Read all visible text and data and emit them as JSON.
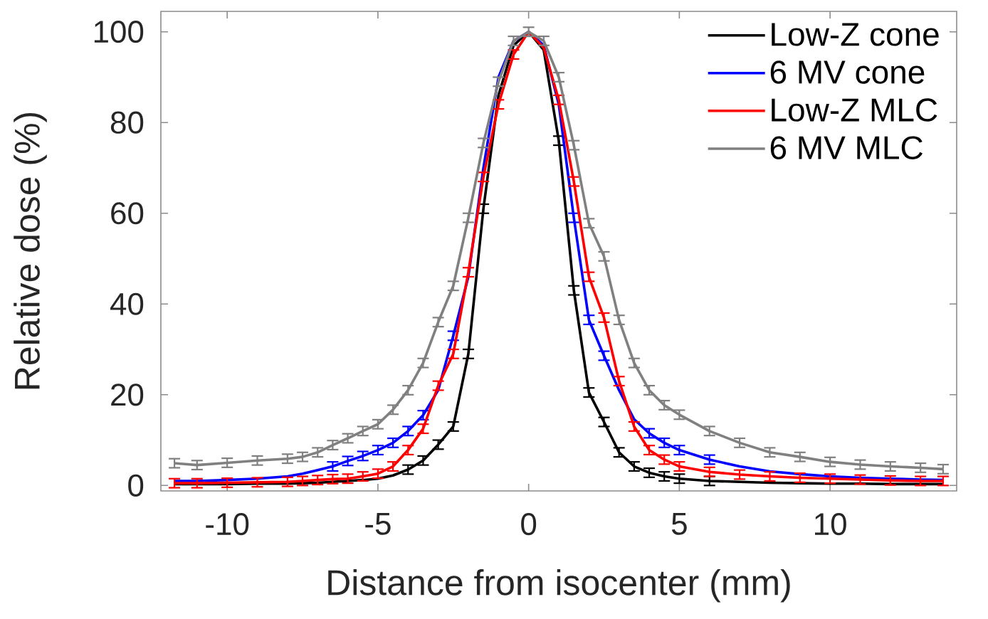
{
  "chart_data": {
    "type": "line",
    "xlabel": "Distance from isocenter (mm)",
    "ylabel": "Relative dose (%)",
    "x": [
      -11.75,
      -11,
      -10,
      -9,
      -8,
      -7.5,
      -7,
      -6.5,
      -6,
      -5.5,
      -5,
      -4.5,
      -4,
      -3.5,
      -3,
      -2.5,
      -2,
      -1.5,
      -1,
      -0.5,
      0,
      0.5,
      1,
      1.5,
      2,
      2.5,
      3,
      3.5,
      4,
      4.5,
      5,
      6,
      7,
      8,
      9,
      10,
      11,
      12,
      13,
      13.75
    ],
    "xlim": [
      -12.2,
      14.2
    ],
    "xticks": [
      -10,
      -5,
      0,
      5,
      10
    ],
    "ylim": [
      -1.2,
      104.5
    ],
    "yticks": [
      0,
      20,
      40,
      60,
      80,
      100
    ],
    "legend": "top right",
    "marker": "none",
    "line_style": "solid",
    "series": [
      {
        "name": "Low-Z cone",
        "color": "#000000",
        "values": [
          0.3,
          0.3,
          0.3,
          0.4,
          0.4,
          0.5,
          0.6,
          0.8,
          1,
          1.2,
          1.5,
          2.2,
          3.5,
          5.5,
          9,
          13,
          29,
          61,
          86,
          97,
          100,
          96,
          76,
          43,
          20.5,
          14,
          7.3,
          4.2,
          2.8,
          2,
          1.5,
          1,
          0.8,
          0.6,
          0.5,
          0.4,
          0.4,
          0.3,
          0.3,
          0.3
        ],
        "errors": [
          null,
          null,
          null,
          null,
          null,
          null,
          null,
          null,
          null,
          null,
          null,
          null,
          1,
          1,
          1,
          1,
          1,
          1,
          null,
          null,
          null,
          null,
          1,
          1,
          1,
          1,
          1,
          1,
          1,
          1,
          1,
          1,
          null,
          null,
          null,
          null,
          null,
          null,
          null,
          null
        ]
      },
      {
        "name": "6 MV cone",
        "color": "#0000ff",
        "values": [
          1,
          1,
          1.2,
          1.5,
          2,
          2.6,
          3.4,
          4.2,
          5.4,
          6.5,
          7.8,
          9.4,
          12,
          15.5,
          21,
          33,
          46,
          70,
          90,
          98,
          100,
          97,
          84,
          59,
          36.5,
          28.6,
          21,
          14.6,
          11.5,
          9.4,
          7.8,
          5.7,
          4.2,
          3.1,
          2.5,
          2,
          1.7,
          1.5,
          1.3,
          1.2
        ],
        "errors": [
          null,
          null,
          null,
          null,
          null,
          null,
          null,
          1,
          1,
          1,
          1,
          1,
          1,
          1,
          null,
          1,
          null,
          null,
          null,
          null,
          null,
          null,
          null,
          1,
          1,
          1,
          null,
          null,
          1,
          1,
          1,
          1,
          null,
          null,
          null,
          null,
          null,
          null,
          null,
          null
        ]
      },
      {
        "name": "Low-Z MLC",
        "color": "#ff0000",
        "values": [
          0.5,
          0.5,
          0.6,
          0.7,
          0.8,
          1,
          1.2,
          1.4,
          1.5,
          2,
          2.6,
          4.2,
          7.8,
          12.5,
          22,
          29,
          47,
          68,
          84,
          95,
          100,
          96.5,
          85,
          67,
          46,
          37,
          23,
          13,
          7.8,
          5.7,
          4.2,
          3,
          2.4,
          2,
          1.7,
          1.5,
          1.3,
          1.1,
          1,
          1
        ],
        "errors": [
          1,
          1,
          1,
          1,
          1,
          1,
          1,
          1,
          1,
          1,
          1,
          1,
          1,
          1,
          1,
          1,
          1,
          1,
          1,
          1,
          null,
          null,
          1,
          1,
          1,
          1,
          1,
          1,
          1,
          1,
          1,
          1,
          1,
          1,
          1,
          1,
          1,
          1,
          1,
          1
        ]
      },
      {
        "name": "6 MV MLC",
        "color": "#808080",
        "values": [
          4.9,
          4.5,
          5,
          5.5,
          5.9,
          6.3,
          7.3,
          8.9,
          10.4,
          12,
          13.5,
          16.7,
          21,
          27,
          36,
          44,
          59,
          75.5,
          89,
          98,
          100,
          98,
          90,
          75,
          57.8,
          50.5,
          36.5,
          27,
          21,
          17.7,
          15.6,
          12,
          9.4,
          7.3,
          6.3,
          5.2,
          4.6,
          4.2,
          3.9,
          3.6
        ],
        "errors": [
          1,
          1,
          1,
          1,
          1,
          1,
          1,
          1,
          1,
          1,
          1,
          1,
          1,
          1,
          1,
          1,
          1,
          1,
          1,
          1,
          1,
          1,
          1,
          1,
          1,
          1,
          1,
          1,
          1,
          1,
          1,
          1,
          1,
          1,
          1,
          1,
          1,
          1,
          1,
          1
        ]
      }
    ]
  }
}
